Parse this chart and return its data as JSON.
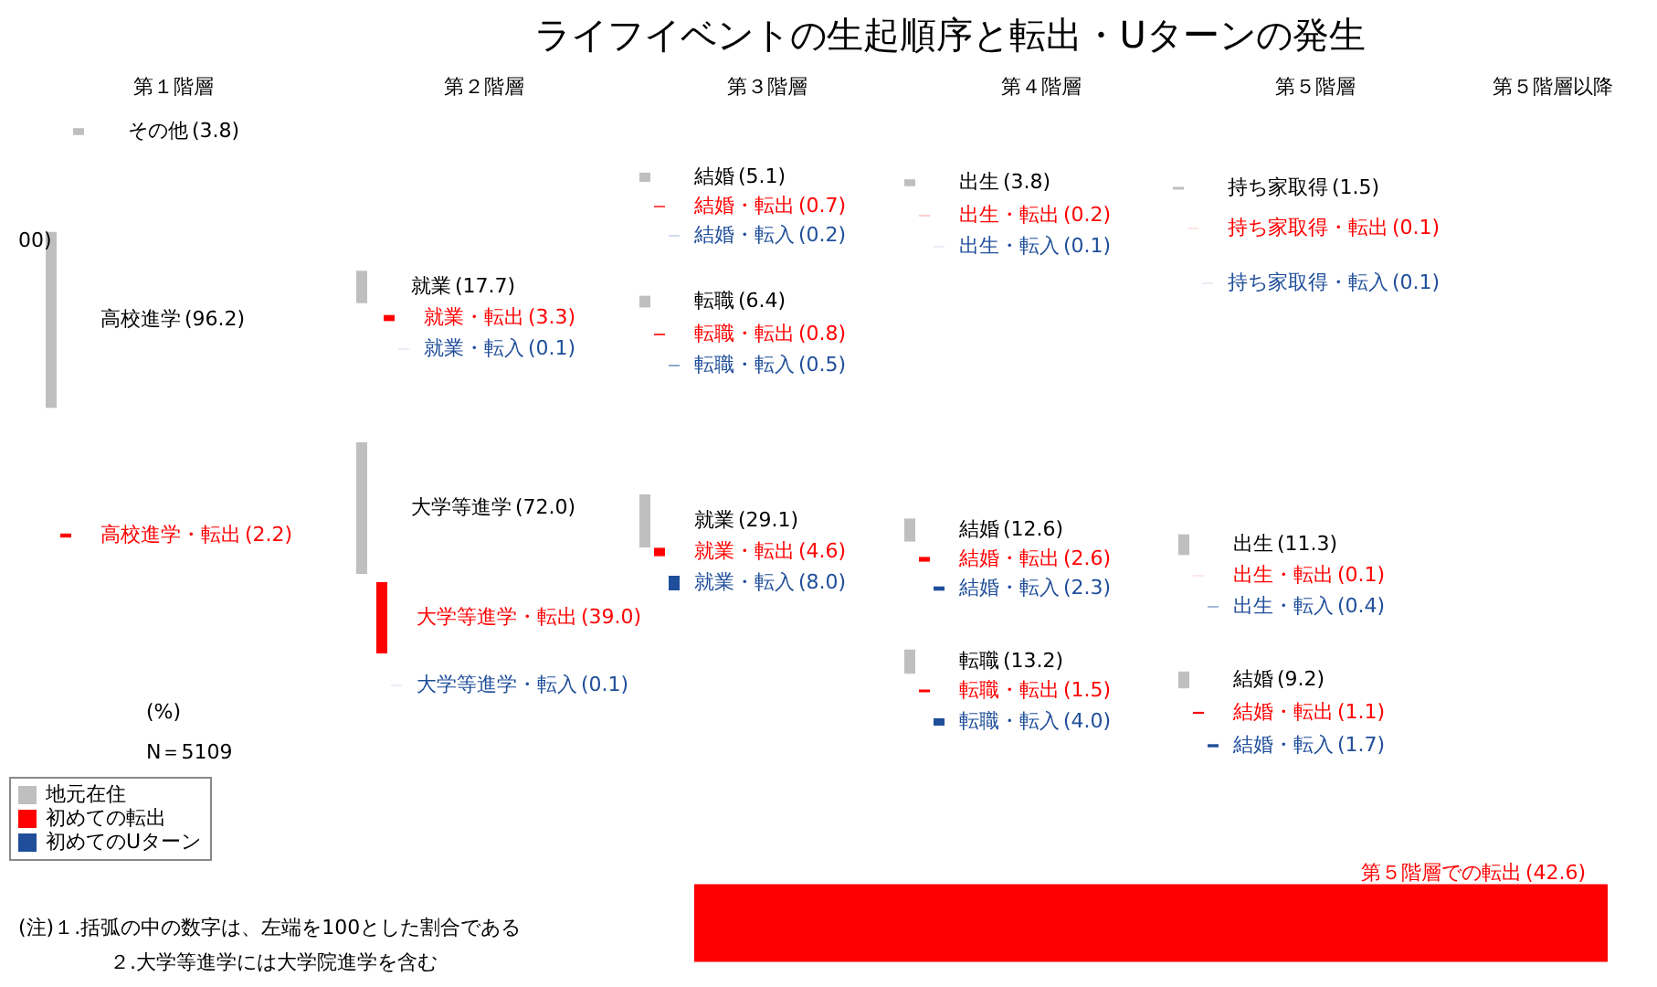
{
  "chart_data": {
    "type": "other",
    "title": "ライフイベントの生起順序と転出・Uターンの発生",
    "categories": [
      "その他",
      "高校進学",
      "高校進学・転出",
      "就業",
      "就業・転出",
      "就業・転入",
      "大学等進学",
      "大学等進学・転出",
      "大学等進学・転入",
      "結婚",
      "結婚・転出",
      "結婚・転入",
      "転職",
      "転職・転出",
      "転職・転入",
      "就業",
      "就業・転出",
      "就業・転入",
      "出生",
      "出生・転出",
      "出生・転入",
      "結婚",
      "結婚・転出",
      "結婚・転入",
      "転職",
      "転職・転出",
      "転職・転入",
      "持ち家取得",
      "持ち家取得・転出",
      "持ち家取得・転入",
      "出生",
      "出生・転出",
      "出生・転入",
      "結婚",
      "結婚・転出",
      "結婚・転入",
      "第５階層での転出"
    ],
    "series": [
      {
        "name": "地元在住",
        "color": "#bfbfbf",
        "values": [
          3.8,
          96.2,
          null,
          17.7,
          null,
          null,
          72.0,
          null,
          null,
          5.1,
          null,
          null,
          6.4,
          null,
          null,
          29.1,
          null,
          null,
          3.8,
          null,
          null,
          12.6,
          null,
          null,
          13.2,
          null,
          null,
          1.5,
          null,
          null,
          11.3,
          null,
          null,
          9.2,
          null,
          null,
          null
        ],
        "value_labels": [
          "(3.8)",
          "(96.2)",
          null,
          "(17.7)",
          null,
          null,
          "(72.0)",
          null,
          null,
          "(5.1)",
          null,
          null,
          "(6.4)",
          null,
          null,
          "(29.1)",
          null,
          null,
          "(3.8)",
          null,
          null,
          "(12.6)",
          null,
          null,
          "(13.2)",
          null,
          null,
          "(1.5)",
          null,
          null,
          "(11.3)",
          null,
          null,
          "(9.2)",
          null,
          null,
          null
        ]
      },
      {
        "name": "初めての転出",
        "color": "#ff0000",
        "values": [
          null,
          null,
          2.2,
          null,
          3.3,
          null,
          null,
          39.0,
          null,
          null,
          0.7,
          null,
          null,
          0.8,
          null,
          null,
          4.6,
          null,
          null,
          0.2,
          null,
          null,
          2.6,
          null,
          null,
          1.5,
          null,
          null,
          0.1,
          null,
          null,
          0.1,
          null,
          null,
          1.1,
          null,
          42.6
        ],
        "value_labels": [
          null,
          null,
          "(2.2)",
          null,
          "(3.3)",
          null,
          null,
          "(39.0)",
          null,
          null,
          "(0.7)",
          null,
          null,
          "(0.8)",
          null,
          null,
          "(4.6)",
          null,
          null,
          "(0.2)",
          null,
          null,
          "(2.6)",
          null,
          null,
          "(1.5)",
          null,
          null,
          "(0.1)",
          null,
          null,
          "(0.1)",
          null,
          null,
          "(1.1)",
          null,
          "(42.6)"
        ]
      },
      {
        "name": "初めてのUターン",
        "color": "#1f4e9a",
        "values": [
          null,
          null,
          null,
          null,
          null,
          0.1,
          null,
          null,
          0.1,
          null,
          null,
          0.2,
          null,
          null,
          0.5,
          null,
          null,
          8.0,
          null,
          null,
          0.1,
          null,
          null,
          2.3,
          null,
          null,
          4.0,
          null,
          null,
          0.1,
          null,
          null,
          0.4,
          null,
          null,
          1.7,
          null
        ],
        "value_labels": [
          null,
          null,
          null,
          null,
          null,
          "(0.1)",
          null,
          null,
          "(0.1)",
          null,
          null,
          "(0.2)",
          null,
          null,
          "(0.5)",
          null,
          null,
          "(8.0)",
          null,
          null,
          "(0.1)",
          null,
          null,
          "(2.3)",
          null,
          null,
          "(4.0)",
          null,
          null,
          "(0.1)",
          null,
          null,
          "(0.4)",
          null,
          null,
          "(1.7)",
          null
        ]
      }
    ],
    "legend": "bottom left",
    "annotations": [
      "第１階層",
      "第２階層",
      "第３階層",
      "第４階層",
      "第５階層",
      "第５階層以降",
      "00)",
      "(%)",
      "N＝5109",
      "(注)１.括弧の中の数字は、左端を100とした割合である",
      "２.大学等進学には大学院進学を含む"
    ]
  }
}
